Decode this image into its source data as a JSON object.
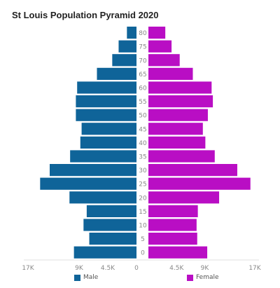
{
  "chart_data": {
    "type": "bar",
    "orientation": "horizontal",
    "title": "St Louis Population Pyramid 2020",
    "categories": [
      "0",
      "5",
      "10",
      "15",
      "20",
      "25",
      "30",
      "35",
      "40",
      "45",
      "50",
      "55",
      "60",
      "65",
      "70",
      "75",
      "80"
    ],
    "series": [
      {
        "name": "Male",
        "color": "#0f6499",
        "values": [
          9800,
          7400,
          8300,
          7800,
          10500,
          15100,
          13600,
          10400,
          8800,
          8600,
          9500,
          9500,
          9300,
          6200,
          3800,
          2800,
          1500
        ]
      },
      {
        "name": "Female",
        "color": "#b90ec4",
        "values": [
          9400,
          7800,
          7700,
          7900,
          11300,
          16300,
          14200,
          10600,
          9100,
          8700,
          9500,
          10300,
          10100,
          7100,
          5000,
          3700,
          2700
        ]
      }
    ],
    "xticks": [
      "17K",
      "9K",
      "4.5K",
      "0",
      "4.5K",
      "9K",
      "17K"
    ],
    "xlim": [
      0,
      17000
    ],
    "legend_position": "bottom"
  }
}
